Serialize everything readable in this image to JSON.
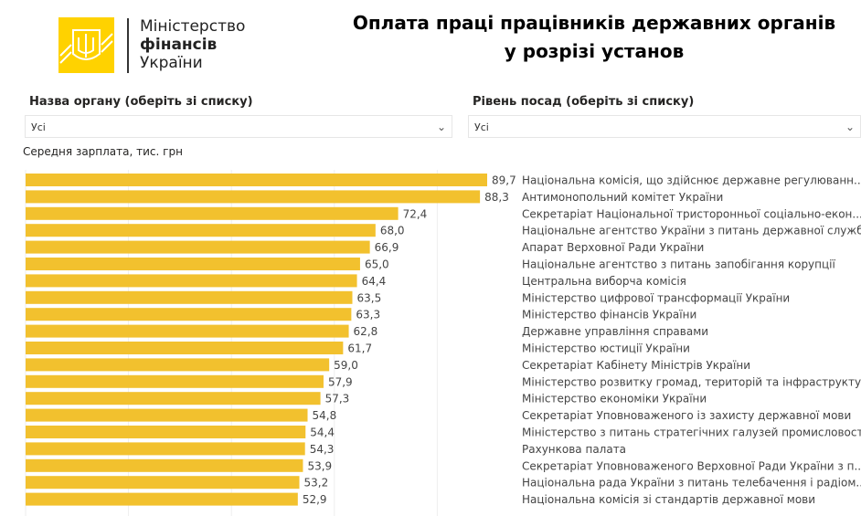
{
  "logo": {
    "line1": "Міністерство",
    "line2": "фінансів",
    "line3": "України"
  },
  "title": {
    "line1": "Оплата праці працівників державних органів",
    "line2": "у розрізі установ"
  },
  "filters": [
    {
      "label": "Назва органу (оберіть зі списку)",
      "value": "Усі"
    },
    {
      "label": "Рівень посад (оберіть зі списку)",
      "value": "Усі"
    }
  ],
  "colors": {
    "bar": "#F2C12E",
    "logo": "#FFD200"
  },
  "chart_data": {
    "type": "bar",
    "orientation": "horizontal",
    "ylabel": "Середня зарплата, тис. грн",
    "categories": [
      "Національна комісія, що здійснює державне регулюванн...",
      "Антимонопольний комітет України",
      "Секретаріат Національної тристоронньої соціально-екон...",
      "Національне агентство України з питань державної служби",
      "Апарат Верховної Ради України",
      "Національне агентство з питань запобігання корупції",
      "Центральна виборча комісія",
      "Міністерство цифрової трансформації України",
      "Міністерство фінансів України",
      "Державне управління справами",
      "Міністерство юстиції України",
      "Секретаріат Кабінету Міністрів України",
      "Міністерство розвитку громад, територій та інфраструкту...",
      "Міністерство економіки України",
      "Секретаріат Уповноваженого із захисту державної мови",
      "Міністерство з питань стратегічних галузей промисловост...",
      "Рахункова палата",
      "Секретаріат Уповноваженого Верховної Ради України з п...",
      "Національна рада України з питань телебачення і радіом...",
      "Національна комісія зі стандартів державної мови"
    ],
    "values": [
      89.7,
      88.3,
      72.4,
      68.0,
      66.9,
      65.0,
      64.4,
      63.5,
      63.3,
      62.8,
      61.7,
      59.0,
      57.9,
      57.3,
      54.8,
      54.4,
      54.3,
      53.9,
      53.2,
      52.9
    ],
    "value_labels": [
      "89,7",
      "88,3",
      "72,4",
      "68,0",
      "66,9",
      "65,0",
      "64,4",
      "63,5",
      "63,3",
      "62,8",
      "61,7",
      "59,0",
      "57,9",
      "57,3",
      "54,8",
      "54,4",
      "54,3",
      "53,9",
      "53,2",
      "52,9"
    ],
    "xlim": [
      0,
      90
    ],
    "grid": true
  }
}
